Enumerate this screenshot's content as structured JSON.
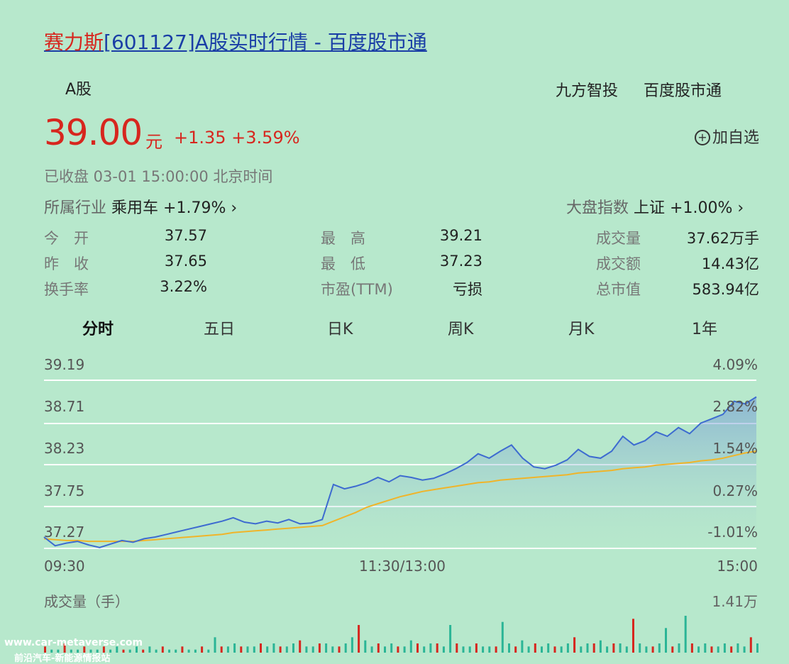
{
  "header": {
    "title_name": "赛力斯",
    "title_rest": "[601127]A股实时行情 - 百度股市通",
    "market": "A股",
    "provider1": "九方智投",
    "provider2": "百度股市通"
  },
  "quote": {
    "price": "39.00",
    "unit": "元",
    "change": "+1.35 +3.59%",
    "add_watch": "加自选",
    "status": "已收盘 03-01 15:00:00 北京时间"
  },
  "industry": {
    "label": "所属行业",
    "name": "乘用车",
    "pct": "+1.79%"
  },
  "market_index": {
    "label": "大盘指数",
    "name": "上证",
    "pct": "+1.00%"
  },
  "stats": [
    {
      "label": "今　开",
      "value": "37.57",
      "color": "green"
    },
    {
      "label": "最　高",
      "value": "39.21",
      "color": "red"
    },
    {
      "label": "成交量",
      "value": "37.62万手",
      "color": "dark"
    },
    {
      "label": "昨　收",
      "value": "37.65",
      "color": "dark"
    },
    {
      "label": "最　低",
      "value": "37.23",
      "color": "green"
    },
    {
      "label": "成交额",
      "value": "14.43亿",
      "color": "dark"
    },
    {
      "label": "换手率",
      "value": "3.22%",
      "color": "dark"
    },
    {
      "label": "市盈(TTM)",
      "value": "亏损",
      "color": "dark"
    },
    {
      "label": "总市值",
      "value": "583.94亿",
      "color": "dark"
    }
  ],
  "tabs": [
    "分时",
    "五日",
    "日K",
    "周K",
    "月K",
    "1年"
  ],
  "chart_data": {
    "type": "line",
    "y_left_ticks": [
      "39.19",
      "38.71",
      "38.23",
      "37.75",
      "37.27"
    ],
    "y_right_ticks": [
      "4.09%",
      "2.82%",
      "1.54%",
      "0.27%",
      "-1.01%"
    ],
    "x_ticks": [
      "09:30",
      "11:30/13:00",
      "15:00"
    ],
    "ylim": [
      37.27,
      39.19
    ],
    "price": [
      37.4,
      37.3,
      37.33,
      37.35,
      37.31,
      37.28,
      37.32,
      37.36,
      37.34,
      37.38,
      37.4,
      37.43,
      37.46,
      37.49,
      37.52,
      37.55,
      37.58,
      37.62,
      37.57,
      37.55,
      37.58,
      37.56,
      37.6,
      37.55,
      37.56,
      37.6,
      38.0,
      37.95,
      37.98,
      38.02,
      38.08,
      38.03,
      38.1,
      38.08,
      38.05,
      38.07,
      38.12,
      38.18,
      38.25,
      38.35,
      38.3,
      38.38,
      38.45,
      38.3,
      38.2,
      38.18,
      38.22,
      38.28,
      38.4,
      38.32,
      38.3,
      38.38,
      38.55,
      38.45,
      38.5,
      38.6,
      38.55,
      38.65,
      38.58,
      38.7,
      38.75,
      38.8,
      38.95,
      38.92,
      39.0
    ],
    "avg": [
      37.38,
      37.37,
      37.36,
      37.36,
      37.35,
      37.35,
      37.35,
      37.35,
      37.35,
      37.36,
      37.37,
      37.38,
      37.39,
      37.4,
      37.41,
      37.42,
      37.43,
      37.45,
      37.46,
      37.47,
      37.48,
      37.49,
      37.5,
      37.51,
      37.52,
      37.53,
      37.58,
      37.63,
      37.68,
      37.74,
      37.78,
      37.82,
      37.86,
      37.89,
      37.92,
      37.94,
      37.96,
      37.98,
      38.0,
      38.02,
      38.03,
      38.05,
      38.06,
      38.07,
      38.08,
      38.09,
      38.1,
      38.11,
      38.13,
      38.14,
      38.15,
      38.16,
      38.18,
      38.19,
      38.2,
      38.22,
      38.23,
      38.24,
      38.25,
      38.27,
      38.28,
      38.3,
      38.33,
      38.36,
      38.38
    ],
    "volume_label": "成交量（手）",
    "volume_max_label": "1.41万",
    "volume": [
      2,
      1,
      1,
      3,
      1,
      1,
      2,
      1,
      1,
      2,
      1,
      2,
      1,
      1,
      2,
      1,
      2,
      1,
      2,
      1,
      1,
      2,
      1,
      1,
      2,
      1,
      5,
      2,
      2,
      3,
      2,
      2,
      2,
      3,
      2,
      3,
      2,
      2,
      3,
      4,
      2,
      2,
      3,
      3,
      2,
      2,
      3,
      5,
      9,
      4,
      2,
      3,
      2,
      3,
      2,
      2,
      4,
      3,
      2,
      3,
      3,
      2,
      9,
      3,
      2,
      2,
      3,
      2,
      2,
      2,
      10,
      3,
      2,
      4,
      2,
      3,
      2,
      3,
      2,
      2,
      3,
      5,
      2,
      3,
      3,
      4,
      2,
      3,
      3,
      2,
      11,
      3,
      2,
      2,
      3,
      8,
      2,
      3,
      12,
      3,
      2,
      3,
      2,
      2,
      3,
      2,
      3,
      2,
      5,
      3
    ]
  },
  "watermark": {
    "line1": "www.car-metaverse.com",
    "line2": "前沿汽车-新能源情报站"
  },
  "colors": {
    "red": "#d7261e",
    "green": "#18a07a",
    "price_line": "#3d6bd0",
    "avg_line": "#f0b429",
    "background": "#b7e8cc"
  }
}
